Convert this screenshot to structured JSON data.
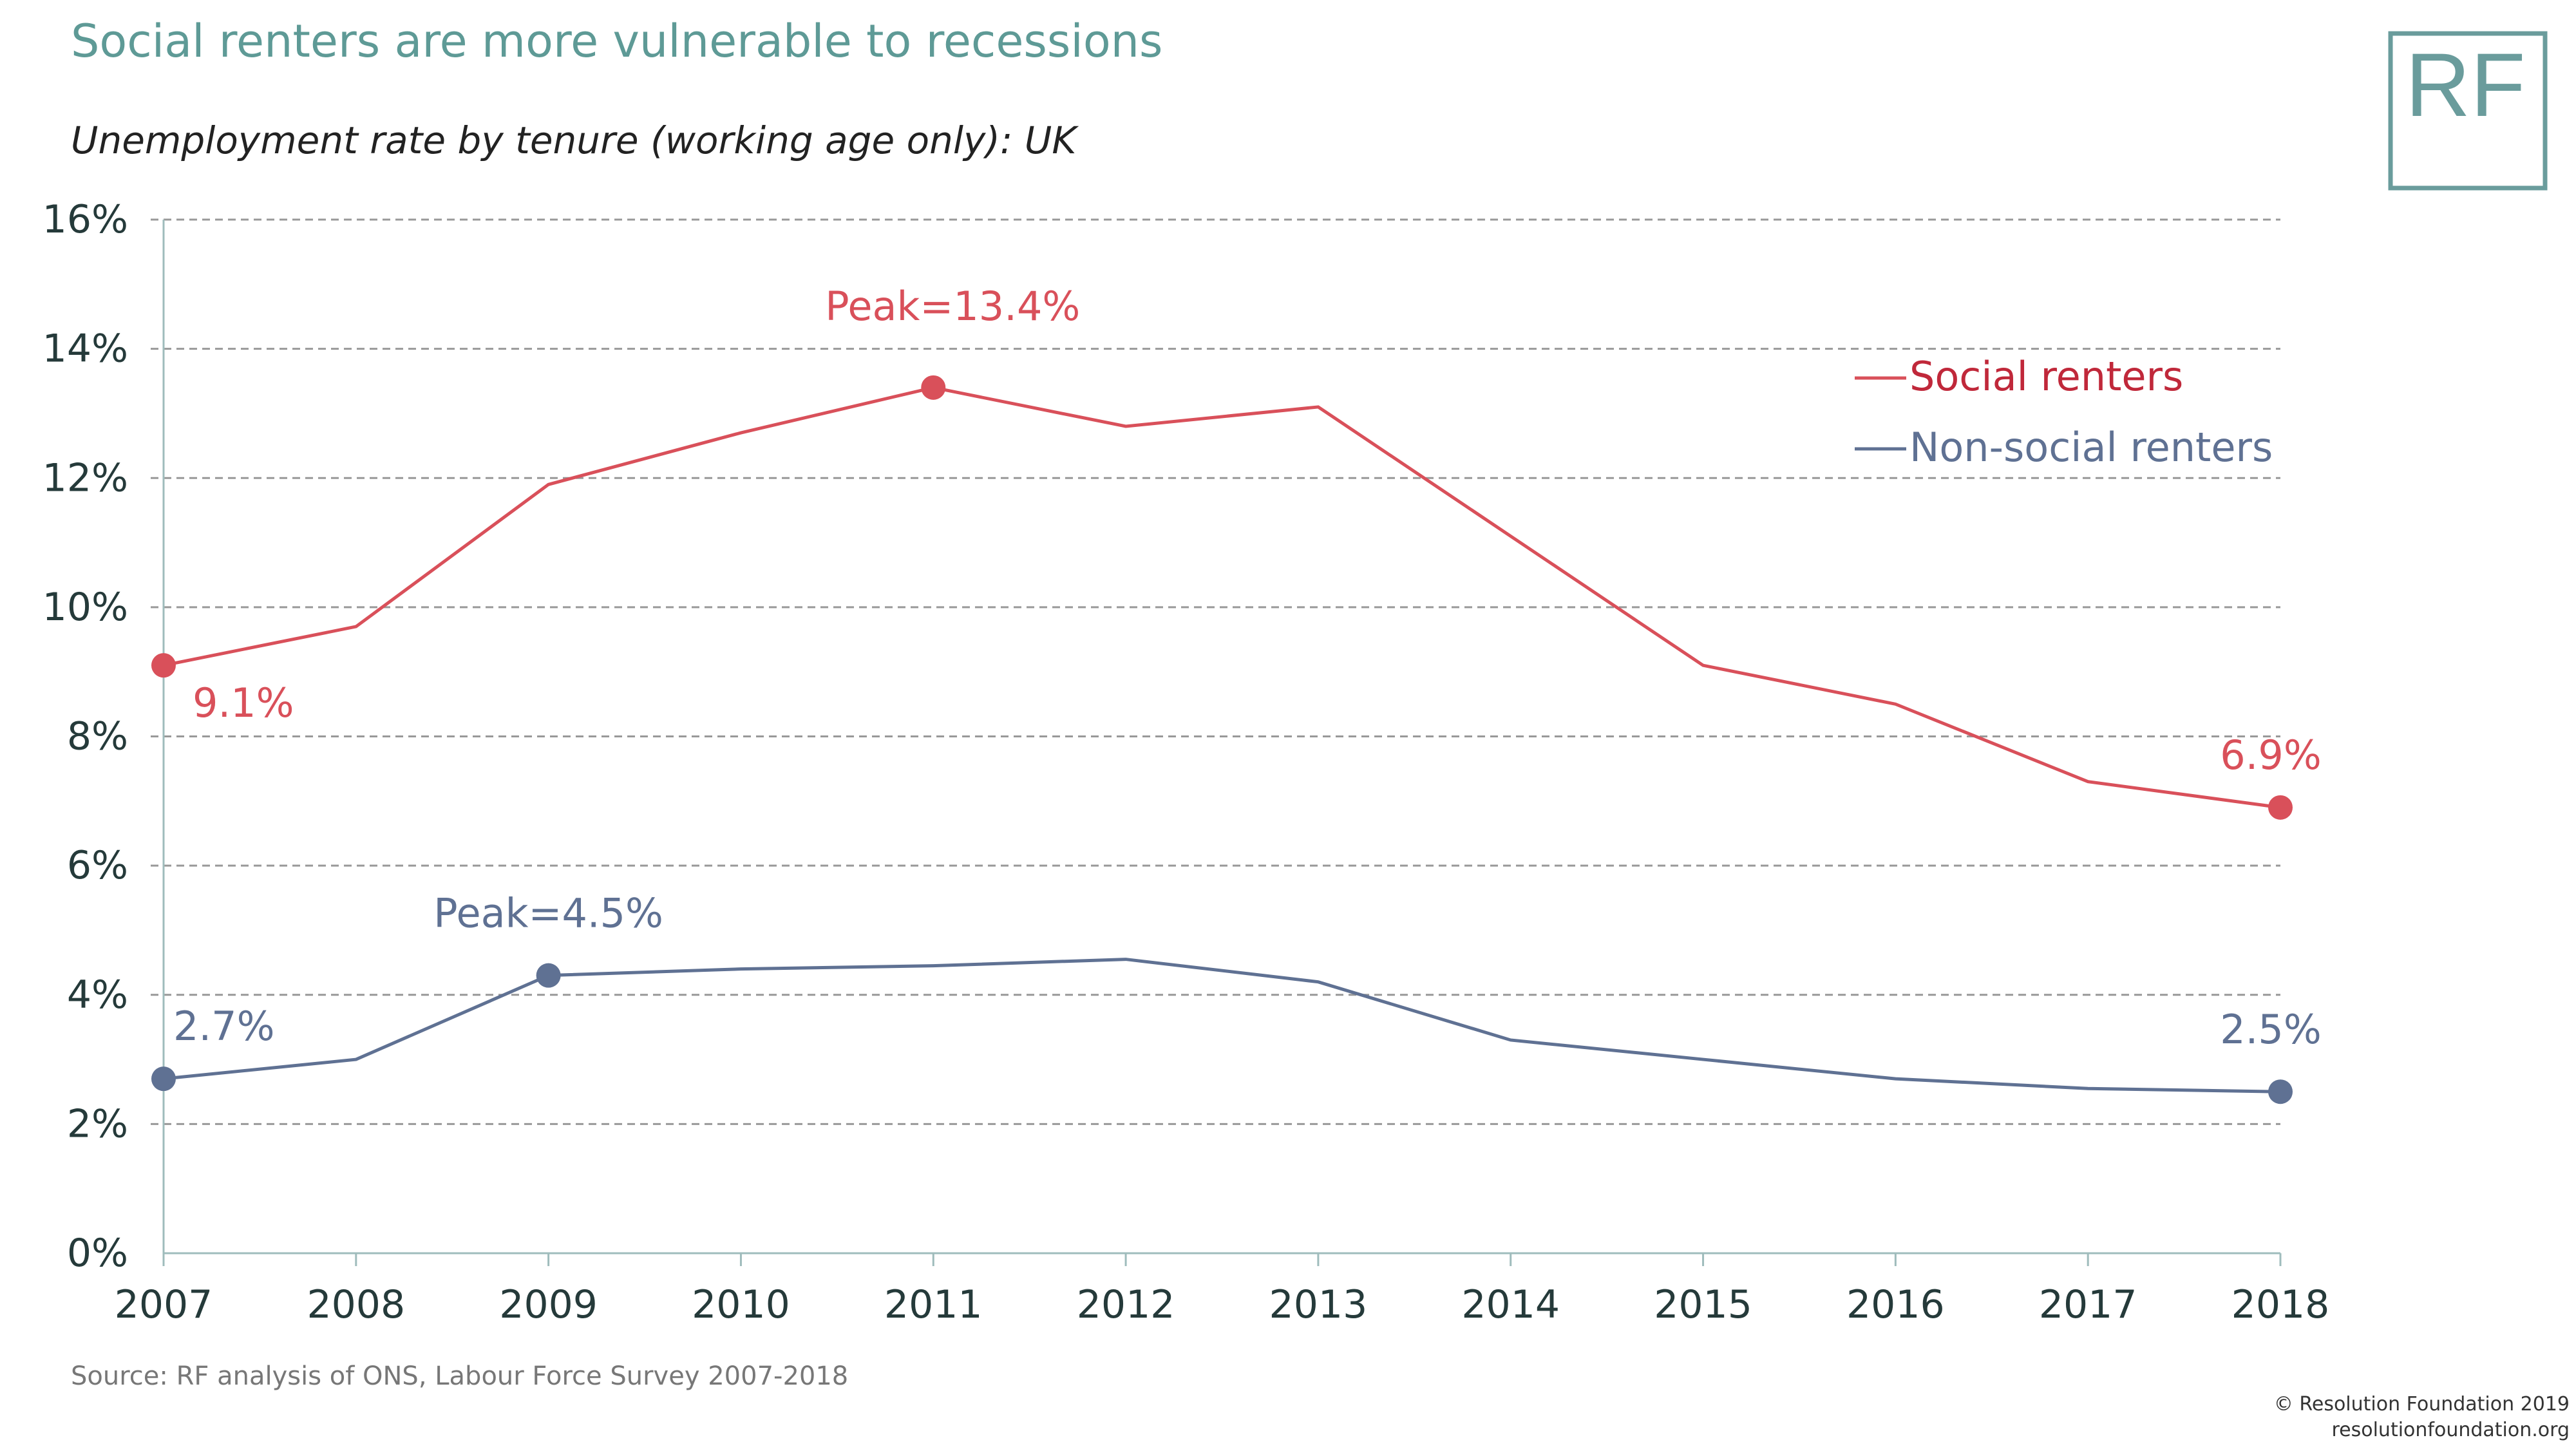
{
  "title": "Social renters are more vulnerable to recessions",
  "logo_text": "RF",
  "source": "Source: RF analysis of ONS, Labour Force Survey 2007-2018",
  "copyright": [
    "© Resolution Foundation 2019",
    "resolutionfoundation.org"
  ],
  "colors": {
    "social": "#d9505a",
    "nonsocial": "#5f7193",
    "brand": "#6a9c9c"
  },
  "chart_data": {
    "type": "line",
    "title": "Social renters are more vulnerable to recessions",
    "subtitle": "Unemployment rate by tenure (working age only): UK",
    "xlabel": "",
    "ylabel": "",
    "x": [
      2007,
      2008,
      2009,
      2010,
      2011,
      2012,
      2013,
      2014,
      2015,
      2016,
      2017,
      2018
    ],
    "ylim": [
      0,
      16
    ],
    "yticks": [
      "0%",
      "2%",
      "4%",
      "6%",
      "8%",
      "10%",
      "12%",
      "14%",
      "16%"
    ],
    "xticks": [
      "2007",
      "2008",
      "2009",
      "2010",
      "2011",
      "2012",
      "2013",
      "2014",
      "2015",
      "2016",
      "2017",
      "2018"
    ],
    "grid": true,
    "legend_position": "top-right",
    "series": [
      {
        "name": "Social renters",
        "values": [
          9.1,
          9.7,
          11.9,
          12.7,
          13.4,
          12.8,
          13.1,
          11.1,
          9.1,
          8.5,
          7.3,
          6.9
        ]
      },
      {
        "name": "Non-social renters",
        "values": [
          2.7,
          3.0,
          4.3,
          4.4,
          4.45,
          4.55,
          4.2,
          3.3,
          3.0,
          2.7,
          2.55,
          2.5
        ]
      }
    ],
    "annotations": [
      {
        "text": "9.1%",
        "series": 0,
        "x": 2007
      },
      {
        "text": "Peak=13.4%",
        "series": 0,
        "x": 2011
      },
      {
        "text": "6.9%",
        "series": 0,
        "x": 2018
      },
      {
        "text": "2.7%",
        "series": 1,
        "x": 2007
      },
      {
        "text": "Peak=4.5%",
        "series": 1,
        "x": 2009
      },
      {
        "text": "2.5%",
        "series": 1,
        "x": 2018
      }
    ]
  }
}
